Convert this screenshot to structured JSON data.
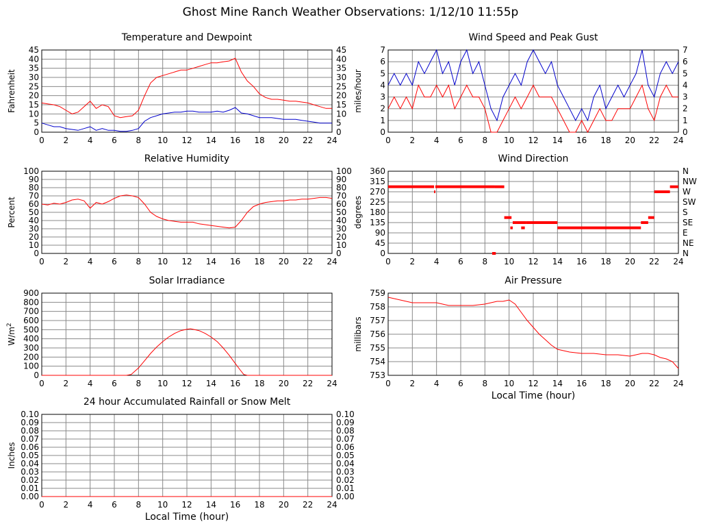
{
  "page": {
    "title": "Ghost Mine Ranch Weather Observations: 1/12/10 11:55p"
  },
  "colors": {
    "temperature": "#ff0000",
    "dewpoint": "#0000cc",
    "grid": "#888888"
  },
  "chart_data": [
    {
      "id": "temperature-dewpoint",
      "type": "line",
      "title": "Temperature and Dewpoint",
      "xlabel": "",
      "ylabel": "Fahrenheit",
      "xlim": [
        0,
        24
      ],
      "ylim": [
        0,
        45
      ],
      "x_ticks": [
        0,
        2,
        4,
        6,
        8,
        10,
        12,
        14,
        16,
        18,
        20,
        22,
        24
      ],
      "y_ticks": [
        0,
        5,
        10,
        15,
        20,
        25,
        30,
        35,
        40,
        45
      ],
      "right_axis": true,
      "grid": true,
      "series": [
        {
          "color": "#ff0000",
          "x": [
            0,
            0.5,
            1,
            1.5,
            2,
            2.5,
            3,
            3.5,
            4,
            4.5,
            5,
            5.5,
            6,
            6.5,
            7,
            7.5,
            8,
            8.5,
            9,
            9.5,
            10,
            10.5,
            11,
            11.5,
            12,
            12.5,
            13,
            13.5,
            14,
            14.5,
            15,
            15.5,
            16,
            16.5,
            17,
            17.5,
            18,
            18.5,
            19,
            19.5,
            20,
            20.5,
            21,
            21.5,
            22,
            22.5,
            23,
            23.5,
            24
          ],
          "y": [
            16,
            15.5,
            15,
            14,
            12,
            10,
            11,
            14,
            17,
            13,
            15,
            14,
            9,
            8,
            8.5,
            9,
            12,
            20,
            27,
            30,
            31,
            32,
            33,
            34,
            34,
            35,
            36,
            37,
            38,
            38,
            38.5,
            39,
            40.5,
            33,
            28,
            25,
            21,
            19,
            18,
            18,
            17.5,
            17,
            17,
            16.5,
            16,
            15,
            14,
            13,
            13
          ]
        },
        {
          "color": "#0000cc",
          "x": [
            0,
            0.5,
            1,
            1.5,
            2,
            2.5,
            3,
            3.5,
            4,
            4.5,
            5,
            5.5,
            6,
            6.5,
            7,
            7.5,
            8,
            8.5,
            9,
            9.5,
            10,
            10.5,
            11,
            11.5,
            12,
            12.5,
            13,
            13.5,
            14,
            14.5,
            15,
            15.5,
            16,
            16.5,
            17,
            17.5,
            18,
            18.5,
            19,
            19.5,
            20,
            20.5,
            21,
            21.5,
            22,
            22.5,
            23,
            23.5,
            24
          ],
          "y": [
            5,
            4,
            3,
            3,
            2,
            1.5,
            1,
            2,
            3,
            1,
            2,
            1,
            1,
            0.5,
            0.5,
            1,
            2,
            6,
            8,
            9,
            10,
            10.5,
            11,
            11,
            11.5,
            11.5,
            11,
            11,
            11,
            11.5,
            11,
            12,
            13.5,
            10.5,
            10,
            9,
            8,
            8,
            8,
            7.5,
            7,
            7,
            7,
            6.5,
            6,
            5.5,
            5,
            5,
            5
          ]
        }
      ]
    },
    {
      "id": "wind-speed-gust",
      "type": "line",
      "title": "Wind Speed and Peak Gust",
      "xlabel": "",
      "ylabel": "miles/hour",
      "xlim": [
        0,
        24
      ],
      "ylim": [
        0,
        7
      ],
      "x_ticks": [
        0,
        2,
        4,
        6,
        8,
        10,
        12,
        14,
        16,
        18,
        20,
        22,
        24
      ],
      "y_ticks": [
        0,
        1,
        2,
        3,
        4,
        5,
        6,
        7
      ],
      "right_axis": true,
      "grid": true,
      "series": [
        {
          "color": "#0000cc",
          "x": [
            0,
            0.5,
            1,
            1.5,
            2,
            2.5,
            3,
            3.5,
            4,
            4.5,
            5,
            5.5,
            6,
            6.5,
            7,
            7.5,
            8,
            8.5,
            9,
            9.5,
            10,
            10.5,
            11,
            11.5,
            12,
            12.5,
            13,
            13.5,
            14,
            14.5,
            15,
            15.5,
            16,
            16.5,
            17,
            17.5,
            18,
            18.5,
            19,
            19.5,
            20,
            20.5,
            21,
            21.5,
            22,
            22.5,
            23,
            23.5,
            24
          ],
          "y": [
            4,
            5,
            4,
            5,
            4,
            6,
            5,
            6,
            7,
            5,
            6,
            4,
            6,
            7,
            5,
            6,
            4,
            2,
            1,
            3,
            4,
            5,
            4,
            6,
            7,
            6,
            5,
            6,
            4,
            3,
            2,
            1,
            2,
            1,
            3,
            4,
            2,
            3,
            4,
            3,
            4,
            5,
            7,
            4,
            3,
            5,
            6,
            5,
            6
          ]
        },
        {
          "color": "#ff0000",
          "x": [
            0,
            0.5,
            1,
            1.5,
            2,
            2.5,
            3,
            3.5,
            4,
            4.5,
            5,
            5.5,
            6,
            6.5,
            7,
            7.5,
            8,
            8.5,
            9,
            9.5,
            10,
            10.5,
            11,
            11.5,
            12,
            12.5,
            13,
            13.5,
            14,
            14.5,
            15,
            15.5,
            16,
            16.5,
            17,
            17.5,
            18,
            18.5,
            19,
            19.5,
            20,
            20.5,
            21,
            21.5,
            22,
            22.5,
            23,
            23.5,
            24
          ],
          "y": [
            2,
            3,
            2,
            3,
            2,
            4,
            3,
            3,
            4,
            3,
            4,
            2,
            3,
            4,
            3,
            3,
            2,
            0,
            0,
            1,
            2,
            3,
            2,
            3,
            4,
            3,
            3,
            3,
            2,
            1,
            0,
            0,
            1,
            0,
            1,
            2,
            1,
            1,
            2,
            2,
            2,
            3,
            4,
            2,
            1,
            3,
            4,
            3,
            3
          ]
        }
      ]
    },
    {
      "id": "relative-humidity",
      "type": "line",
      "title": "Relative Humidity",
      "xlabel": "",
      "ylabel": "Percent",
      "xlim": [
        0,
        24
      ],
      "ylim": [
        0,
        100
      ],
      "x_ticks": [
        0,
        2,
        4,
        6,
        8,
        10,
        12,
        14,
        16,
        18,
        20,
        22,
        24
      ],
      "y_ticks": [
        0,
        10,
        20,
        30,
        40,
        50,
        60,
        70,
        80,
        90,
        100
      ],
      "right_axis": true,
      "grid": true,
      "series": [
        {
          "color": "#ff0000",
          "x": [
            0,
            0.5,
            1,
            1.5,
            2,
            2.5,
            3,
            3.5,
            4,
            4.5,
            5,
            5.5,
            6,
            6.5,
            7,
            7.5,
            8,
            8.5,
            9,
            9.5,
            10,
            10.5,
            11,
            11.5,
            12,
            12.5,
            13,
            13.5,
            14,
            14.5,
            15,
            15.5,
            16,
            16.5,
            17,
            17.5,
            18,
            18.5,
            19,
            19.5,
            20,
            20.5,
            21,
            21.5,
            22,
            22.5,
            23,
            23.5,
            24
          ],
          "y": [
            60,
            59,
            61,
            60,
            62,
            65,
            66,
            64,
            55,
            62,
            60,
            63,
            67,
            70,
            71,
            70,
            68,
            60,
            50,
            45,
            42,
            40,
            39,
            38,
            38,
            38,
            36,
            35,
            34,
            33,
            32,
            31,
            32,
            40,
            50,
            57,
            60,
            62,
            63,
            64,
            64,
            65,
            65,
            66,
            66,
            67,
            68,
            68,
            67
          ]
        }
      ]
    },
    {
      "id": "wind-direction",
      "type": "scatter",
      "title": "Wind Direction",
      "xlabel": "",
      "ylabel": "degrees",
      "xlim": [
        0,
        24
      ],
      "ylim": [
        0,
        360
      ],
      "x_ticks": [
        0,
        2,
        4,
        6,
        8,
        10,
        12,
        14,
        16,
        18,
        20,
        22,
        24
      ],
      "y_ticks": [
        0,
        45,
        90,
        135,
        180,
        225,
        270,
        315,
        360
      ],
      "right_labels": [
        "N",
        "NE",
        "E",
        "SE",
        "S",
        "SW",
        "W",
        "NW",
        "N"
      ],
      "grid": true,
      "segments": [
        {
          "x0": 0,
          "x1": 3.8,
          "y": 292
        },
        {
          "x0": 3.8,
          "x1": 3.9,
          "y": 270
        },
        {
          "x0": 3.9,
          "x1": 8.8,
          "y": 292
        },
        {
          "x0": 8.8,
          "x1": 9.6,
          "y": 292
        },
        {
          "x0": 8.6,
          "x1": 8.9,
          "y": 0
        },
        {
          "x0": 9.6,
          "x1": 10.2,
          "y": 157
        },
        {
          "x0": 10.1,
          "x1": 10.3,
          "y": 112
        },
        {
          "x0": 10.3,
          "x1": 11.4,
          "y": 135
        },
        {
          "x0": 11.0,
          "x1": 11.3,
          "y": 112
        },
        {
          "x0": 11.4,
          "x1": 14,
          "y": 135
        },
        {
          "x0": 14,
          "x1": 20.9,
          "y": 112
        },
        {
          "x0": 20.9,
          "x1": 21.5,
          "y": 135
        },
        {
          "x0": 21.5,
          "x1": 22,
          "y": 157
        },
        {
          "x0": 22,
          "x1": 23.3,
          "y": 270
        },
        {
          "x0": 23.3,
          "x1": 24,
          "y": 292
        }
      ]
    },
    {
      "id": "solar-irradiance",
      "type": "line",
      "title": "Solar Irradiance",
      "xlabel": "",
      "ylabel": "W/m",
      "ylabel_sup": "2",
      "xlim": [
        0,
        24
      ],
      "ylim": [
        0,
        900
      ],
      "x_ticks": [
        0,
        2,
        4,
        6,
        8,
        10,
        12,
        14,
        16,
        18,
        20,
        22,
        24
      ],
      "y_ticks": [
        0,
        100,
        200,
        300,
        400,
        500,
        600,
        700,
        800,
        900
      ],
      "right_axis": false,
      "grid": true,
      "series": [
        {
          "color": "#ff0000",
          "x": [
            0,
            7,
            7.4,
            8,
            8.5,
            9,
            9.5,
            10,
            10.5,
            11,
            11.5,
            12,
            12.3,
            12.5,
            13,
            13.5,
            14,
            14.5,
            15,
            15.5,
            16,
            16.4,
            16.7,
            17,
            24
          ],
          "y": [
            0,
            0,
            10,
            80,
            160,
            240,
            310,
            370,
            420,
            460,
            490,
            505,
            510,
            505,
            490,
            460,
            420,
            370,
            300,
            220,
            130,
            60,
            10,
            0,
            0
          ]
        }
      ]
    },
    {
      "id": "air-pressure",
      "type": "line",
      "title": "Air Pressure",
      "xlabel": "Local Time (hour)",
      "ylabel": "millibars",
      "xlim": [
        0,
        24
      ],
      "ylim": [
        753,
        759
      ],
      "x_ticks": [
        0,
        2,
        4,
        6,
        8,
        10,
        12,
        14,
        16,
        18,
        20,
        22,
        24
      ],
      "y_ticks": [
        753,
        754,
        755,
        756,
        757,
        758,
        759
      ],
      "right_axis": false,
      "grid": true,
      "series": [
        {
          "color": "#ff0000",
          "x": [
            0,
            0.5,
            1,
            1.5,
            2,
            3,
            4,
            5,
            6,
            7,
            8,
            8.5,
            9,
            9.5,
            10,
            10.5,
            11,
            11.5,
            12,
            12.5,
            13,
            13.5,
            14,
            15,
            16,
            17,
            18,
            19,
            20,
            21,
            21.5,
            22,
            22.5,
            23,
            23.5,
            24
          ],
          "y": [
            758.7,
            758.6,
            758.5,
            758.4,
            758.3,
            758.3,
            758.3,
            758.1,
            758.1,
            758.1,
            758.2,
            758.3,
            758.4,
            758.4,
            758.5,
            758.2,
            757.6,
            757,
            756.5,
            756,
            755.6,
            755.2,
            754.9,
            754.7,
            754.6,
            754.6,
            754.5,
            754.5,
            754.4,
            754.6,
            754.6,
            754.5,
            754.3,
            754.2,
            754,
            753.5
          ]
        }
      ]
    },
    {
      "id": "rainfall",
      "type": "line",
      "title": "24 hour Accumulated Rainfall or Snow Melt",
      "xlabel": "Local Time (hour)",
      "ylabel": "Inches",
      "xlim": [
        0,
        24
      ],
      "ylim": [
        0,
        0.1
      ],
      "x_ticks": [
        0,
        2,
        4,
        6,
        8,
        10,
        12,
        14,
        16,
        18,
        20,
        22,
        24
      ],
      "y_ticks": [
        0,
        0.01,
        0.02,
        0.03,
        0.04,
        0.05,
        0.06,
        0.07,
        0.08,
        0.09,
        0.1
      ],
      "y_tick_decimals": 2,
      "right_axis": true,
      "grid": true,
      "series": [
        {
          "color": "#ff0000",
          "x": [
            0,
            24
          ],
          "y": [
            0,
            0
          ]
        }
      ]
    }
  ]
}
